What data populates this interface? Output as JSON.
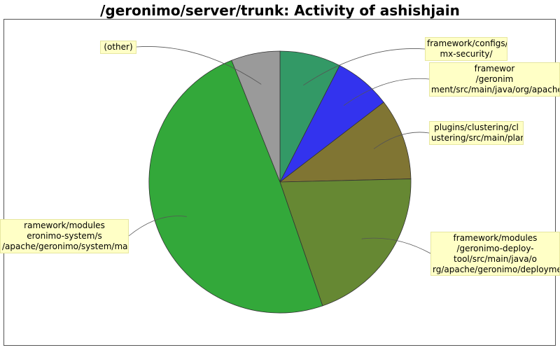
{
  "title": "/geronimo/server/trunk: Activity of ashishjain",
  "chart_data": {
    "type": "pie",
    "slices": [
      {
        "label_lines": [
          "framework/configs/j",
          "mx-security/"
        ],
        "value": 7.5,
        "color": "#339966"
      },
      {
        "label_lines": [
          "framewor",
          "/geronim",
          "ment/src/main/java/org/apache/g"
        ],
        "value": 7.0,
        "color": "#3333ee"
      },
      {
        "label_lines": [
          "plugins/clustering/cl",
          "ustering/src/main/plan/"
        ],
        "value": 10.0,
        "color": "#807533"
      },
      {
        "label_lines": [
          "framework/modules",
          "/geronimo-deploy-",
          "tool/src/main/java/o",
          "rg/apache/geronimo/deployment"
        ],
        "value": 20.0,
        "color": "#668833"
      },
      {
        "label_lines": [
          "ramework/modules",
          "eronimo-system/s",
          "/apache/geronimo/system/main/"
        ],
        "value": 49.0,
        "color": "#33a83a"
      },
      {
        "label_lines": [
          "(other)"
        ],
        "value": 6.0,
        "color": "#9a9a9a"
      }
    ]
  }
}
